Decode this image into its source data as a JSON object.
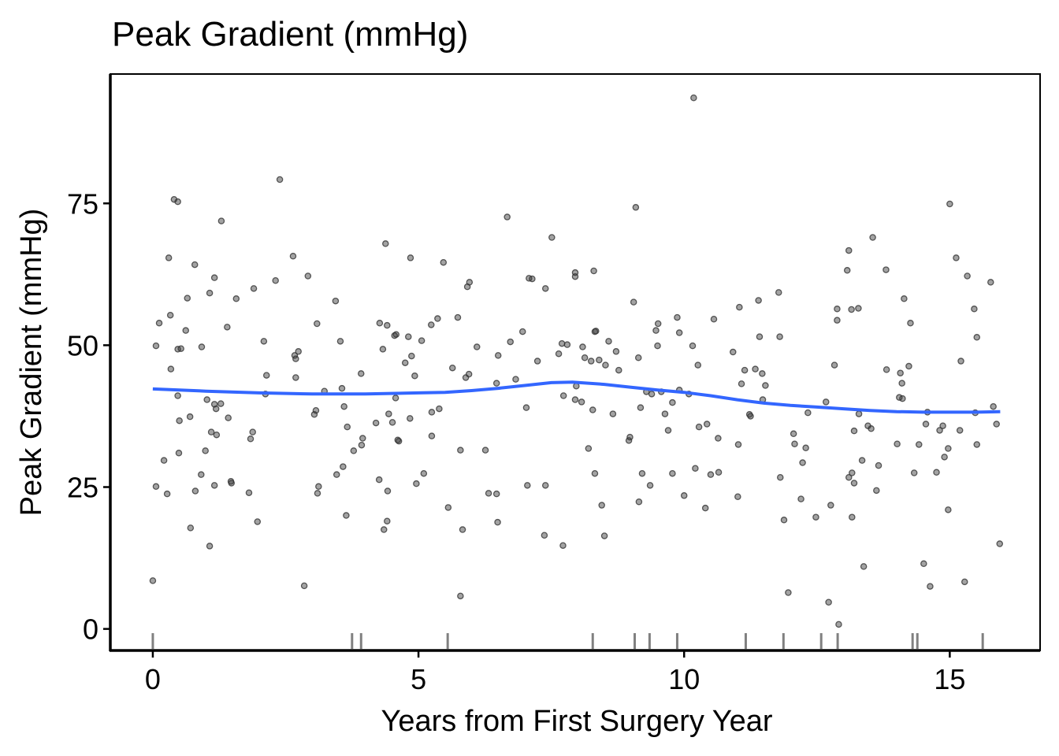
{
  "chart_data": {
    "type": "scatter",
    "title": "Peak Gradient (mmHg)",
    "xlabel": "Years from First Surgery Year",
    "ylabel": "Peak Gradient (mmHg)",
    "xlim": [
      -0.8,
      16.7
    ],
    "ylim": [
      -3.8,
      97.8
    ],
    "xticks": [
      0,
      5,
      10,
      15
    ],
    "xtick_labels": [
      "0",
      "5",
      "10",
      "15"
    ],
    "yticks": [
      0,
      25,
      50,
      75
    ],
    "ytick_labels": [
      "0",
      "25",
      "50",
      "75"
    ],
    "grid": false,
    "colors": {
      "points": "#333333",
      "smooth": "#3366FF",
      "rug": "#808080"
    },
    "points": [
      [
        0,
        8.5
      ],
      [
        0.06,
        49.9
      ],
      [
        0.06,
        25.1
      ],
      [
        0.12,
        53.9
      ],
      [
        0.21,
        29.7
      ],
      [
        0.27,
        23.8
      ],
      [
        0.3,
        65.4
      ],
      [
        0.33,
        55.3
      ],
      [
        0.34,
        45.8
      ],
      [
        0.4,
        75.7
      ],
      [
        0.47,
        75.3
      ],
      [
        0.47,
        49.3
      ],
      [
        0.47,
        41.1
      ],
      [
        0.49,
        31
      ],
      [
        0.5,
        36.7
      ],
      [
        0.53,
        49.4
      ],
      [
        0.62,
        52.6
      ],
      [
        0.65,
        58.3
      ],
      [
        0.7,
        37.4
      ],
      [
        0.71,
        17.8
      ],
      [
        0.79,
        64.2
      ],
      [
        0.8,
        24.3
      ],
      [
        0.91,
        27.2
      ],
      [
        0.92,
        49.7
      ],
      [
        0.99,
        31.4
      ],
      [
        1.02,
        40.4
      ],
      [
        1.07,
        59.2
      ],
      [
        1.07,
        14.6
      ],
      [
        1.1,
        34.7
      ],
      [
        1.16,
        61.9
      ],
      [
        1.16,
        25.3
      ],
      [
        1.16,
        39.6
      ],
      [
        1.19,
        38.8
      ],
      [
        1.2,
        34.2
      ],
      [
        1.28,
        39.7
      ],
      [
        1.29,
        71.9
      ],
      [
        1.4,
        53.2
      ],
      [
        1.42,
        37.2
      ],
      [
        1.47,
        26
      ],
      [
        1.48,
        25.7
      ],
      [
        1.57,
        58.2
      ],
      [
        1.81,
        24
      ],
      [
        1.84,
        33.5
      ],
      [
        1.88,
        34.7
      ],
      [
        1.9,
        60
      ],
      [
        1.97,
        18.9
      ],
      [
        2.09,
        50.7
      ],
      [
        2.14,
        44.7
      ],
      [
        2.12,
        41.4
      ],
      [
        2.31,
        61.4
      ],
      [
        2.39,
        79.2
      ],
      [
        2.64,
        65.7
      ],
      [
        2.67,
        48.2
      ],
      [
        2.69,
        47.6
      ],
      [
        2.69,
        44.3
      ],
      [
        2.74,
        48.9
      ],
      [
        2.85,
        7.6
      ],
      [
        2.92,
        62.2
      ],
      [
        3.04,
        37.8
      ],
      [
        3.07,
        38.5
      ],
      [
        3.09,
        53.8
      ],
      [
        3.12,
        25.1
      ],
      [
        3.1,
        23.9
      ],
      [
        3.23,
        41.9
      ],
      [
        3.44,
        57.8
      ],
      [
        3.46,
        27.2
      ],
      [
        3.53,
        50.7
      ],
      [
        3.56,
        42.4
      ],
      [
        3.58,
        28.6
      ],
      [
        3.6,
        39.2
      ],
      [
        3.64,
        20
      ],
      [
        3.66,
        35.6
      ],
      [
        3.78,
        31.4
      ],
      [
        3.92,
        45
      ],
      [
        3.93,
        32.4
      ],
      [
        3.95,
        33.6
      ],
      [
        4.2,
        36.3
      ],
      [
        4.27,
        53.9
      ],
      [
        4.26,
        26.3
      ],
      [
        4.33,
        49.3
      ],
      [
        4.35,
        17.5
      ],
      [
        4.38,
        67.9
      ],
      [
        4.41,
        53.5
      ],
      [
        4.41,
        19
      ],
      [
        4.42,
        24.3
      ],
      [
        4.44,
        37.9
      ],
      [
        4.51,
        36.4
      ],
      [
        4.55,
        51.7
      ],
      [
        4.57,
        40.7
      ],
      [
        4.58,
        51.9
      ],
      [
        4.61,
        33.3
      ],
      [
        4.63,
        33.1
      ],
      [
        4.75,
        46.9
      ],
      [
        4.81,
        51.5
      ],
      [
        4.84,
        37.1
      ],
      [
        4.85,
        65.4
      ],
      [
        4.87,
        48.1
      ],
      [
        4.93,
        44.6
      ],
      [
        4.96,
        25.6
      ],
      [
        5.06,
        50.8
      ],
      [
        5.1,
        27.4
      ],
      [
        5.24,
        53.6
      ],
      [
        5.25,
        38.2
      ],
      [
        5.25,
        34
      ],
      [
        5.36,
        54.7
      ],
      [
        5.39,
        38.8
      ],
      [
        5.47,
        64.6
      ],
      [
        5.56,
        21.4
      ],
      [
        5.64,
        46
      ],
      [
        5.74,
        54.9
      ],
      [
        5.79,
        31.5
      ],
      [
        5.79,
        5.8
      ],
      [
        5.83,
        17.5
      ],
      [
        5.89,
        44.3
      ],
      [
        5.92,
        60.3
      ],
      [
        5.96,
        61.1
      ],
      [
        5.95,
        44.9
      ],
      [
        6.1,
        49.7
      ],
      [
        6.26,
        31.5
      ],
      [
        6.32,
        23.9
      ],
      [
        6.47,
        23.8
      ],
      [
        6.47,
        43.3
      ],
      [
        6.49,
        18.8
      ],
      [
        6.5,
        48.2
      ],
      [
        6.67,
        72.6
      ],
      [
        6.73,
        50.6
      ],
      [
        6.83,
        44
      ],
      [
        6.96,
        52.4
      ],
      [
        7.03,
        39
      ],
      [
        7.05,
        25.3
      ],
      [
        7.08,
        61.8
      ],
      [
        7.14,
        61.7
      ],
      [
        7.24,
        47.2
      ],
      [
        7.39,
        60
      ],
      [
        7.39,
        25.3
      ],
      [
        7.37,
        16.5
      ],
      [
        7.51,
        69
      ],
      [
        7.64,
        48.5
      ],
      [
        7.7,
        50.3
      ],
      [
        7.72,
        14.7
      ],
      [
        7.73,
        41.1
      ],
      [
        7.8,
        50.1
      ],
      [
        7.95,
        62.1
      ],
      [
        7.95,
        62.8
      ],
      [
        7.97,
        42.8
      ],
      [
        7.95,
        40.4
      ],
      [
        8.07,
        40
      ],
      [
        8.09,
        49.7
      ],
      [
        8.13,
        47.8
      ],
      [
        8.2,
        31.8
      ],
      [
        8.25,
        47.2
      ],
      [
        8.28,
        38.6
      ],
      [
        8.3,
        63.1
      ],
      [
        8.32,
        52.4
      ],
      [
        8.34,
        52.5
      ],
      [
        8.32,
        27.4
      ],
      [
        8.4,
        47.4
      ],
      [
        8.45,
        21.8
      ],
      [
        8.5,
        16.4
      ],
      [
        8.52,
        46.5
      ],
      [
        8.58,
        50.7
      ],
      [
        8.66,
        37.9
      ],
      [
        8.72,
        48.9
      ],
      [
        8.77,
        45.6
      ],
      [
        8.96,
        33.2
      ],
      [
        8.98,
        33.8
      ],
      [
        9.05,
        57.6
      ],
      [
        9.09,
        74.3
      ],
      [
        9.14,
        47.8
      ],
      [
        9.15,
        22.4
      ],
      [
        9.18,
        39
      ],
      [
        9.21,
        27.4
      ],
      [
        9.29,
        41.8
      ],
      [
        9.36,
        25.3
      ],
      [
        9.39,
        41.4
      ],
      [
        9.47,
        52.6
      ],
      [
        9.5,
        49.9
      ],
      [
        9.51,
        53.8
      ],
      [
        9.57,
        41.8
      ],
      [
        9.64,
        37.9
      ],
      [
        9.7,
        35
      ],
      [
        9.78,
        39.9
      ],
      [
        9.78,
        27.4
      ],
      [
        9.87,
        54.9
      ],
      [
        9.91,
        52.2
      ],
      [
        9.91,
        42.1
      ],
      [
        10,
        23.5
      ],
      [
        10.09,
        41.4
      ],
      [
        10.16,
        49.9
      ],
      [
        10.18,
        93.6
      ],
      [
        10.21,
        28.3
      ],
      [
        10.26,
        46.5
      ],
      [
        10.28,
        35.6
      ],
      [
        10.4,
        21.3
      ],
      [
        10.43,
        36.1
      ],
      [
        10.5,
        27.2
      ],
      [
        10.56,
        54.6
      ],
      [
        10.64,
        33.6
      ],
      [
        10.65,
        27.6
      ],
      [
        10.92,
        48.8
      ],
      [
        11.01,
        23.3
      ],
      [
        11.02,
        32.5
      ],
      [
        11.04,
        56.7
      ],
      [
        11.08,
        43.2
      ],
      [
        11.14,
        45.6
      ],
      [
        11.23,
        37.8
      ],
      [
        11.25,
        37.5
      ],
      [
        11.34,
        45.8
      ],
      [
        11.4,
        57.9
      ],
      [
        11.42,
        51.5
      ],
      [
        11.47,
        45
      ],
      [
        11.48,
        40.4
      ],
      [
        11.53,
        42.9
      ],
      [
        11.78,
        59.3
      ],
      [
        11.8,
        51.5
      ],
      [
        11.81,
        26.7
      ],
      [
        11.88,
        19.2
      ],
      [
        11.96,
        6.4
      ],
      [
        12.06,
        34.4
      ],
      [
        12.08,
        32.6
      ],
      [
        12.2,
        22.9
      ],
      [
        12.23,
        29.3
      ],
      [
        12.29,
        31.9
      ],
      [
        12.33,
        38.1
      ],
      [
        12.48,
        19.7
      ],
      [
        12.67,
        40
      ],
      [
        12.72,
        4.7
      ],
      [
        12.76,
        21.8
      ],
      [
        12.83,
        46.5
      ],
      [
        12.88,
        56.4
      ],
      [
        12.88,
        54.4
      ],
      [
        12.91,
        0.8
      ],
      [
        13.07,
        63.2
      ],
      [
        13.1,
        66.7
      ],
      [
        13.1,
        26.7
      ],
      [
        13.15,
        56.3
      ],
      [
        13.16,
        27.5
      ],
      [
        13.16,
        19.7
      ],
      [
        13.2,
        34.9
      ],
      [
        13.2,
        25.7
      ],
      [
        13.28,
        56.5
      ],
      [
        13.29,
        37.9
      ],
      [
        13.35,
        29.7
      ],
      [
        13.38,
        11
      ],
      [
        13.46,
        35.8
      ],
      [
        13.52,
        35.3
      ],
      [
        13.55,
        69
      ],
      [
        13.62,
        24.4
      ],
      [
        13.66,
        28.8
      ],
      [
        13.8,
        63.3
      ],
      [
        13.81,
        45.7
      ],
      [
        14.01,
        32.6
      ],
      [
        14.05,
        40.8
      ],
      [
        14.07,
        45.1
      ],
      [
        14.1,
        43.3
      ],
      [
        14.11,
        40.6
      ],
      [
        14.14,
        58.2
      ],
      [
        14.23,
        46.3
      ],
      [
        14.26,
        53.9
      ],
      [
        14.33,
        27.5
      ],
      [
        14.42,
        32.5
      ],
      [
        14.51,
        11.5
      ],
      [
        14.55,
        36.1
      ],
      [
        14.58,
        38.2
      ],
      [
        14.63,
        7.5
      ],
      [
        14.75,
        27.6
      ],
      [
        14.81,
        35
      ],
      [
        14.87,
        35.8
      ],
      [
        14.9,
        30.3
      ],
      [
        14.97,
        31.8
      ],
      [
        14.97,
        21
      ],
      [
        15,
        74.9
      ],
      [
        15.12,
        65.4
      ],
      [
        15.19,
        35
      ],
      [
        15.21,
        47.2
      ],
      [
        15.28,
        8.3
      ],
      [
        15.33,
        62.2
      ],
      [
        15.46,
        56.4
      ],
      [
        15.48,
        38.1
      ],
      [
        15.51,
        32.5
      ],
      [
        15.51,
        51.4
      ],
      [
        15.77,
        61.1
      ],
      [
        15.82,
        39.2
      ],
      [
        15.88,
        36.1
      ],
      [
        15.94,
        15
      ]
    ],
    "smooth": [
      [
        0,
        42.3
      ],
      [
        1,
        41.9
      ],
      [
        2,
        41.6
      ],
      [
        3,
        41.4
      ],
      [
        4,
        41.4
      ],
      [
        5,
        41.6
      ],
      [
        5.5,
        41.7
      ],
      [
        6,
        42
      ],
      [
        6.5,
        42.4
      ],
      [
        7,
        42.9
      ],
      [
        7.5,
        43.4
      ],
      [
        7.9,
        43.5
      ],
      [
        8.5,
        43.1
      ],
      [
        9,
        42.6
      ],
      [
        9.5,
        42.1
      ],
      [
        10,
        41.7
      ],
      [
        10.5,
        41.1
      ],
      [
        11,
        40.4
      ],
      [
        11.5,
        39.8
      ],
      [
        12,
        39.4
      ],
      [
        12.5,
        39.1
      ],
      [
        13,
        38.8
      ],
      [
        13.5,
        38.5
      ],
      [
        14,
        38.3
      ],
      [
        14.5,
        38.2
      ],
      [
        15,
        38.2
      ],
      [
        15.5,
        38.2
      ],
      [
        15.95,
        38.3
      ]
    ],
    "rug": [
      0,
      3.75,
      3.92,
      5.55,
      8.28,
      9.07,
      9.35,
      9.87,
      11.16,
      11.87,
      12.58,
      12.89,
      14.3,
      14.39,
      15.62
    ]
  }
}
